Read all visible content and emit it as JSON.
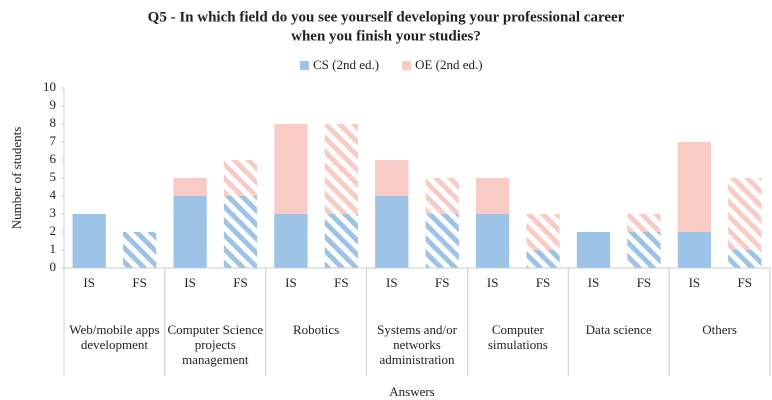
{
  "chart_data": {
    "type": "stacked_bar",
    "title": [
      "Q5 - In which field do you see yourself developing your professional career",
      "when you finish your studies?"
    ],
    "x_label": "Answers",
    "y_label": "Number of students",
    "categories": [
      "IS",
      "FS",
      "IS",
      "FS",
      "IS",
      "FS",
      "IS",
      "FS",
      "IS",
      "FS",
      "IS",
      "FS",
      "IS",
      "FS"
    ],
    "hatched": [
      false,
      true,
      false,
      true,
      false,
      true,
      false,
      true,
      false,
      true,
      false,
      true,
      false,
      true
    ],
    "groups": [
      "Web/mobile apps development",
      "Computer Science projects management",
      "Robotics",
      "Systems and/or networks administration",
      "Computer simulations",
      "Data science",
      "Others"
    ],
    "series": [
      {
        "name": "CS (2nd ed.)",
        "color": "#9dc3e6",
        "values": [
          3,
          2,
          4,
          4,
          3,
          3,
          4,
          3,
          3,
          1,
          2,
          2,
          2,
          1
        ]
      },
      {
        "name": "OE (2nd ed.)",
        "color": "#f8cbc5",
        "values": [
          0,
          0,
          1,
          2,
          5,
          5,
          2,
          2,
          2,
          2,
          0,
          1,
          5,
          4
        ]
      }
    ],
    "ylim": [
      0,
      10
    ],
    "yticks": [
      0,
      1,
      2,
      3,
      4,
      5,
      6,
      7,
      8,
      9,
      10
    ],
    "grid": false,
    "legend": "top"
  }
}
